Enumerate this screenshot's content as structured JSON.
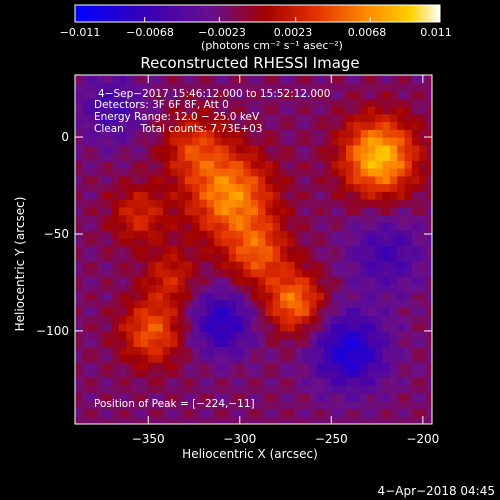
{
  "colorbar": {
    "tick_labels": [
      "−0.011",
      "−0.0068",
      "−0.0023",
      "0.0023",
      "0.0068",
      "0.011"
    ],
    "unit_label": "(photons cm⁻² s⁻¹ asec⁻²)"
  },
  "title": "Reconstructed RHESSI Image",
  "info": {
    "time": "4−Sep−2017 15:46:12.000 to 15:52:12.000",
    "detectors": "Detectors: 3F 6F 8F, Att 0",
    "energy": "Energy Range: 12.0 − 25.0 keV",
    "method": "Clean     Total counts: 7.73E+03",
    "peak": "Position of Peak = [−224,−11]"
  },
  "footer_date": "4−Apr−2018 04:45",
  "chart_data": {
    "type": "heatmap",
    "title": "Reconstructed RHESSI Image",
    "xlabel": "Heliocentric X (arcsec)",
    "ylabel": "Heliocentric Y (arcsec)",
    "xlim": [
      -390,
      -195
    ],
    "ylim": [
      -148,
      32
    ],
    "x_ticks": [
      -350,
      -300,
      -250,
      -200
    ],
    "y_ticks": [
      0,
      -50,
      -100
    ],
    "x_tick_labels": [
      "−350",
      "−300",
      "−250",
      "−200"
    ],
    "y_tick_labels": [
      "0",
      "−50",
      "−100"
    ],
    "colorbar_range": [
      -0.011,
      0.011
    ],
    "colormap": [
      "#0000ff",
      "#3a00b4",
      "#6a0f8a",
      "#a00000",
      "#e23000",
      "#ff8a00",
      "#ffd000",
      "#ffffff"
    ],
    "peak_position": [
      -224,
      -11
    ],
    "sources": [
      {
        "x": -224,
        "y": -10,
        "amplitude": 0.0105,
        "sigma": 14
      },
      {
        "x": -305,
        "y": -30,
        "amplitude": 0.0085,
        "sigma": 16
      },
      {
        "x": -325,
        "y": -5,
        "amplitude": 0.005,
        "sigma": 12
      },
      {
        "x": -290,
        "y": -60,
        "amplitude": 0.006,
        "sigma": 12
      },
      {
        "x": -270,
        "y": -85,
        "amplitude": 0.0075,
        "sigma": 11
      },
      {
        "x": -348,
        "y": -100,
        "amplitude": 0.0065,
        "sigma": 12
      },
      {
        "x": -355,
        "y": -40,
        "amplitude": 0.0045,
        "sigma": 11
      },
      {
        "x": -338,
        "y": -72,
        "amplitude": 0.004,
        "sigma": 10
      },
      {
        "x": -310,
        "y": -95,
        "amplitude": -0.006,
        "sigma": 12
      },
      {
        "x": -240,
        "y": -110,
        "amplitude": -0.007,
        "sigma": 14
      },
      {
        "x": -220,
        "y": -60,
        "amplitude": -0.004,
        "sigma": 14
      },
      {
        "x": -370,
        "y": 15,
        "amplitude": -0.004,
        "sigma": 12
      }
    ]
  }
}
